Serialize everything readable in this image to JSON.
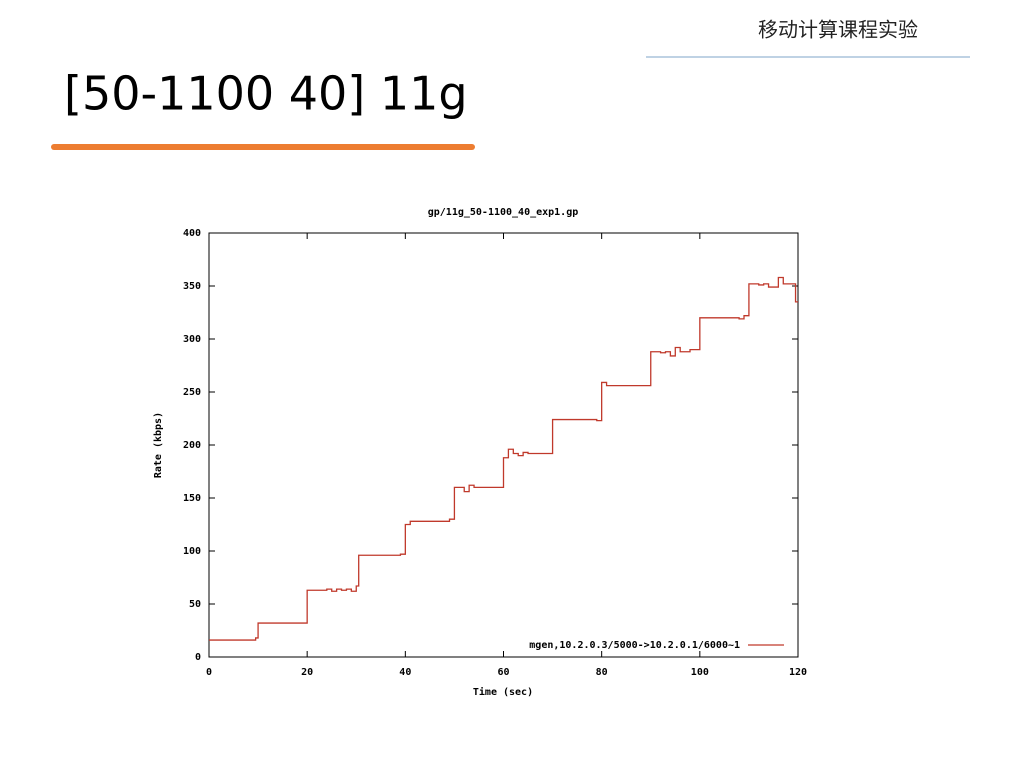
{
  "header": {
    "course": "移动计算课程实验",
    "title": "[50-1100 40] 11g"
  },
  "chart_data": {
    "type": "line",
    "drawstyle": "steps-post",
    "title": "gp/11g_50-1100_40_exp1.gp",
    "x_label": "Time (sec)",
    "y_label": "Rate (kbps)",
    "x": [
      0,
      9.5,
      10,
      20,
      24,
      25,
      26,
      27,
      28,
      29,
      30,
      30.5,
      39,
      40,
      41,
      49,
      50,
      52,
      53,
      54,
      60,
      61,
      62,
      63,
      64,
      65,
      70,
      79,
      80,
      81,
      90,
      92,
      93,
      94,
      95,
      96,
      98,
      100,
      108,
      109,
      110,
      112,
      113,
      114,
      116,
      117,
      119.5,
      120
    ],
    "series": [
      {
        "name": "mgen,10.2.0.3/5000->10.2.0.1/6000~1",
        "color": "#c0392b",
        "values": [
          16,
          18,
          32,
          63,
          64,
          62,
          64,
          63,
          64,
          62,
          67,
          96,
          97,
          125,
          128,
          130,
          160,
          156,
          162,
          160,
          188,
          196,
          192,
          190,
          193,
          192,
          224,
          223,
          259,
          256,
          288,
          287,
          288,
          284,
          292,
          288,
          290,
          320,
          319,
          322,
          352,
          351,
          352,
          349,
          358,
          352,
          335,
          335
        ]
      }
    ],
    "xlim": [
      0,
      120
    ],
    "xticks": [
      0,
      20,
      40,
      60,
      80,
      100,
      120
    ],
    "ylim": [
      0,
      400
    ],
    "yticks": [
      0,
      50,
      100,
      150,
      200,
      250,
      300,
      350,
      400
    ],
    "legend": "lower right"
  }
}
